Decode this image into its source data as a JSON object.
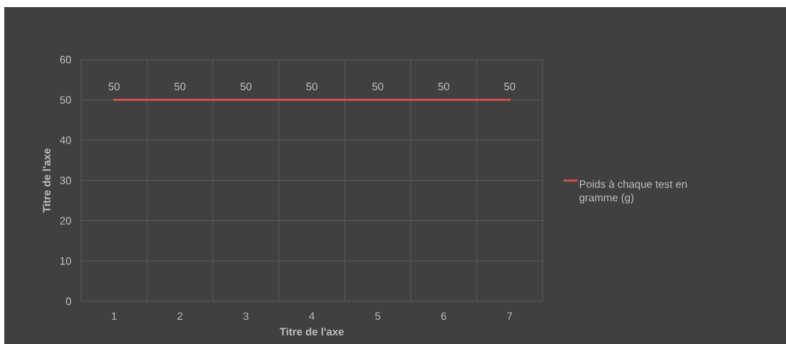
{
  "chart_data": {
    "type": "line",
    "xlabel": "Titre de l'axe",
    "ylabel": "Titre de l'axe",
    "categories": [
      "1",
      "2",
      "3",
      "4",
      "5",
      "6",
      "7"
    ],
    "series": [
      {
        "name": "Poids à chaque test en gramme (g)",
        "color": "#d0504d",
        "values": [
          50,
          50,
          50,
          50,
          50,
          50,
          50
        ]
      }
    ],
    "ylim": [
      0,
      60
    ],
    "yticks": [
      0,
      10,
      20,
      30,
      40,
      50,
      60
    ],
    "grid": true,
    "legend": "right",
    "data_labels": true,
    "marker": "none",
    "line_style": "solid"
  }
}
